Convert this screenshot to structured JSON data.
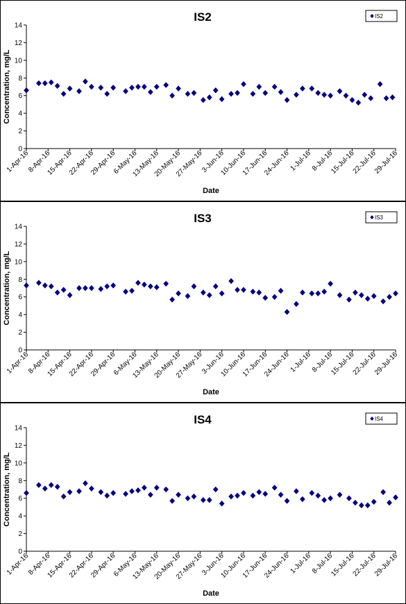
{
  "chart_data": [
    {
      "type": "scatter",
      "title": "IS2",
      "xlabel": "Date",
      "ylabel": "Concentration, mg/L",
      "ylim": [
        0,
        14
      ],
      "yticks": [
        "0",
        "2",
        "4",
        "6",
        "8",
        "10",
        "12",
        "14"
      ],
      "xlim": [
        "2016-04-01",
        "2016-07-29"
      ],
      "xticks": [
        "1-Apr-16",
        "8-Apr-16",
        "15-Apr-16",
        "22-Apr-16",
        "29-Apr-16",
        "6-May-16",
        "13-May-16",
        "20-May-16",
        "27-May-16",
        "3-Jun-16",
        "10-Jun-16",
        "17-Jun-16",
        "24-Jun-16",
        "1-Jul-16",
        "8-Jul-16",
        "15-Jul-16",
        "22-Jul-16",
        "29-Jul-16"
      ],
      "legend": "top-right",
      "color": "#000080",
      "series": [
        {
          "name": "IS2",
          "points": [
            [
              "2016-04-01",
              6.6
            ],
            [
              "2016-04-05",
              7.4
            ],
            [
              "2016-04-07",
              7.4
            ],
            [
              "2016-04-09",
              7.5
            ],
            [
              "2016-04-11",
              7.1
            ],
            [
              "2016-04-13",
              6.2
            ],
            [
              "2016-04-15",
              6.8
            ],
            [
              "2016-04-18",
              6.5
            ],
            [
              "2016-04-20",
              7.6
            ],
            [
              "2016-04-22",
              7.0
            ],
            [
              "2016-04-25",
              6.9
            ],
            [
              "2016-04-27",
              6.2
            ],
            [
              "2016-04-29",
              6.9
            ],
            [
              "2016-05-03",
              6.5
            ],
            [
              "2016-05-05",
              6.9
            ],
            [
              "2016-05-07",
              7.0
            ],
            [
              "2016-05-09",
              7.0
            ],
            [
              "2016-05-11",
              6.4
            ],
            [
              "2016-05-13",
              7.0
            ],
            [
              "2016-05-16",
              7.2
            ],
            [
              "2016-05-18",
              6.0
            ],
            [
              "2016-05-20",
              6.8
            ],
            [
              "2016-05-23",
              6.2
            ],
            [
              "2016-05-25",
              6.3
            ],
            [
              "2016-05-28",
              5.5
            ],
            [
              "2016-05-30",
              5.8
            ],
            [
              "2016-06-01",
              6.6
            ],
            [
              "2016-06-03",
              5.6
            ],
            [
              "2016-06-06",
              6.2
            ],
            [
              "2016-06-08",
              6.3
            ],
            [
              "2016-06-10",
              7.3
            ],
            [
              "2016-06-13",
              6.2
            ],
            [
              "2016-06-15",
              7.0
            ],
            [
              "2016-06-17",
              6.3
            ],
            [
              "2016-06-20",
              7.0
            ],
            [
              "2016-06-22",
              6.4
            ],
            [
              "2016-06-24",
              5.5
            ],
            [
              "2016-06-27",
              6.1
            ],
            [
              "2016-06-29",
              6.8
            ],
            [
              "2016-07-02",
              6.8
            ],
            [
              "2016-07-04",
              6.3
            ],
            [
              "2016-07-06",
              6.1
            ],
            [
              "2016-07-08",
              6.0
            ],
            [
              "2016-07-11",
              6.5
            ],
            [
              "2016-07-13",
              6.0
            ],
            [
              "2016-07-15",
              5.5
            ],
            [
              "2016-07-17",
              5.2
            ],
            [
              "2016-07-19",
              6.1
            ],
            [
              "2016-07-21",
              5.7
            ],
            [
              "2016-07-24",
              7.3
            ],
            [
              "2016-07-26",
              5.7
            ],
            [
              "2016-07-28",
              5.8
            ]
          ]
        }
      ]
    },
    {
      "type": "scatter",
      "title": "IS3",
      "xlabel": "Date",
      "ylabel": "Concentration, mg/L",
      "ylim": [
        0,
        14
      ],
      "yticks": [
        "0",
        "2",
        "4",
        "6",
        "8",
        "10",
        "12",
        "14"
      ],
      "xlim": [
        "2016-04-01",
        "2016-07-29"
      ],
      "xticks": [
        "1-Apr-16",
        "8-Apr-16",
        "15-Apr-16",
        "22-Apr-16",
        "29-Apr-16",
        "6-May-16",
        "13-May-16",
        "20-May-16",
        "27-May-16",
        "3-Jun-16",
        "10-Jun-16",
        "17-Jun-16",
        "24-Jun-16",
        "1-Jul-16",
        "8-Jul-16",
        "15-Jul-16",
        "22-Jul-16",
        "29-Jul-16"
      ],
      "legend": "top-right",
      "color": "#000080",
      "series": [
        {
          "name": "IS3",
          "points": [
            [
              "2016-04-01",
              7.3
            ],
            [
              "2016-04-05",
              7.6
            ],
            [
              "2016-04-07",
              7.3
            ],
            [
              "2016-04-09",
              7.2
            ],
            [
              "2016-04-11",
              6.5
            ],
            [
              "2016-04-13",
              6.8
            ],
            [
              "2016-04-15",
              6.2
            ],
            [
              "2016-04-18",
              7.0
            ],
            [
              "2016-04-20",
              7.0
            ],
            [
              "2016-04-22",
              7.0
            ],
            [
              "2016-04-25",
              6.9
            ],
            [
              "2016-04-27",
              7.2
            ],
            [
              "2016-04-29",
              7.3
            ],
            [
              "2016-05-03",
              6.6
            ],
            [
              "2016-05-05",
              6.7
            ],
            [
              "2016-05-07",
              7.6
            ],
            [
              "2016-05-09",
              7.4
            ],
            [
              "2016-05-11",
              7.2
            ],
            [
              "2016-05-13",
              7.1
            ],
            [
              "2016-05-16",
              7.5
            ],
            [
              "2016-05-18",
              5.7
            ],
            [
              "2016-05-20",
              6.4
            ],
            [
              "2016-05-23",
              6.1
            ],
            [
              "2016-05-25",
              7.2
            ],
            [
              "2016-05-28",
              6.5
            ],
            [
              "2016-05-30",
              6.2
            ],
            [
              "2016-06-01",
              7.2
            ],
            [
              "2016-06-03",
              6.4
            ],
            [
              "2016-06-06",
              7.8
            ],
            [
              "2016-06-08",
              6.8
            ],
            [
              "2016-06-10",
              6.8
            ],
            [
              "2016-06-13",
              6.6
            ],
            [
              "2016-06-15",
              6.5
            ],
            [
              "2016-06-17",
              5.9
            ],
            [
              "2016-06-20",
              6.0
            ],
            [
              "2016-06-22",
              6.7
            ],
            [
              "2016-06-24",
              4.3
            ],
            [
              "2016-06-27",
              5.2
            ],
            [
              "2016-06-29",
              6.5
            ],
            [
              "2016-07-02",
              6.4
            ],
            [
              "2016-07-04",
              6.4
            ],
            [
              "2016-07-06",
              6.6
            ],
            [
              "2016-07-08",
              7.5
            ],
            [
              "2016-07-11",
              6.2
            ],
            [
              "2016-07-14",
              5.7
            ],
            [
              "2016-07-16",
              6.5
            ],
            [
              "2016-07-18",
              6.2
            ],
            [
              "2016-07-20",
              5.8
            ],
            [
              "2016-07-22",
              6.1
            ],
            [
              "2016-07-25",
              5.5
            ],
            [
              "2016-07-27",
              6.0
            ],
            [
              "2016-07-29",
              6.4
            ]
          ]
        }
      ]
    },
    {
      "type": "scatter",
      "title": "IS4",
      "xlabel": "Date",
      "ylabel": "Concentration, mg/L",
      "ylim": [
        0,
        14
      ],
      "yticks": [
        "0",
        "2",
        "4",
        "6",
        "8",
        "10",
        "12",
        "14"
      ],
      "xlim": [
        "2016-04-01",
        "2016-07-29"
      ],
      "xticks": [
        "1-Apr-16",
        "8-Apr-16",
        "15-Apr-16",
        "22-Apr-16",
        "29-Apr-16",
        "6-May-16",
        "13-May-16",
        "20-May-16",
        "27-May-16",
        "3-Jun-16",
        "10-Jun-16",
        "17-Jun-16",
        "24-Jun-16",
        "1-Jul-16",
        "8-Jul-16",
        "15-Jul-16",
        "22-Jul-16",
        "29-Jul-16"
      ],
      "legend": "top-right",
      "color": "#000080",
      "series": [
        {
          "name": "IS4",
          "points": [
            [
              "2016-04-01",
              6.6
            ],
            [
              "2016-04-05",
              7.5
            ],
            [
              "2016-04-07",
              7.1
            ],
            [
              "2016-04-09",
              7.5
            ],
            [
              "2016-04-11",
              7.3
            ],
            [
              "2016-04-13",
              6.2
            ],
            [
              "2016-04-15",
              6.7
            ],
            [
              "2016-04-18",
              6.8
            ],
            [
              "2016-04-20",
              7.7
            ],
            [
              "2016-04-22",
              7.1
            ],
            [
              "2016-04-25",
              6.7
            ],
            [
              "2016-04-27",
              6.3
            ],
            [
              "2016-04-29",
              6.6
            ],
            [
              "2016-05-03",
              6.5
            ],
            [
              "2016-05-05",
              6.8
            ],
            [
              "2016-05-07",
              6.9
            ],
            [
              "2016-05-09",
              7.2
            ],
            [
              "2016-05-11",
              6.4
            ],
            [
              "2016-05-13",
              7.2
            ],
            [
              "2016-05-16",
              7.0
            ],
            [
              "2016-05-18",
              5.7
            ],
            [
              "2016-05-20",
              6.4
            ],
            [
              "2016-05-23",
              6.0
            ],
            [
              "2016-05-25",
              6.2
            ],
            [
              "2016-05-28",
              5.8
            ],
            [
              "2016-05-30",
              5.8
            ],
            [
              "2016-06-01",
              7.0
            ],
            [
              "2016-06-03",
              5.4
            ],
            [
              "2016-06-06",
              6.2
            ],
            [
              "2016-06-08",
              6.3
            ],
            [
              "2016-06-10",
              6.6
            ],
            [
              "2016-06-13",
              6.3
            ],
            [
              "2016-06-15",
              6.7
            ],
            [
              "2016-06-17",
              6.5
            ],
            [
              "2016-06-20",
              7.2
            ],
            [
              "2016-06-22",
              6.4
            ],
            [
              "2016-06-24",
              5.7
            ],
            [
              "2016-06-27",
              6.8
            ],
            [
              "2016-06-29",
              5.9
            ],
            [
              "2016-07-02",
              6.6
            ],
            [
              "2016-07-04",
              6.3
            ],
            [
              "2016-07-06",
              5.8
            ],
            [
              "2016-07-08",
              6.0
            ],
            [
              "2016-07-11",
              6.4
            ],
            [
              "2016-07-14",
              6.0
            ],
            [
              "2016-07-16",
              5.5
            ],
            [
              "2016-07-18",
              5.2
            ],
            [
              "2016-07-20",
              5.2
            ],
            [
              "2016-07-22",
              5.6
            ],
            [
              "2016-07-25",
              6.7
            ],
            [
              "2016-07-27",
              5.5
            ],
            [
              "2016-07-29",
              6.1
            ]
          ]
        }
      ]
    }
  ]
}
